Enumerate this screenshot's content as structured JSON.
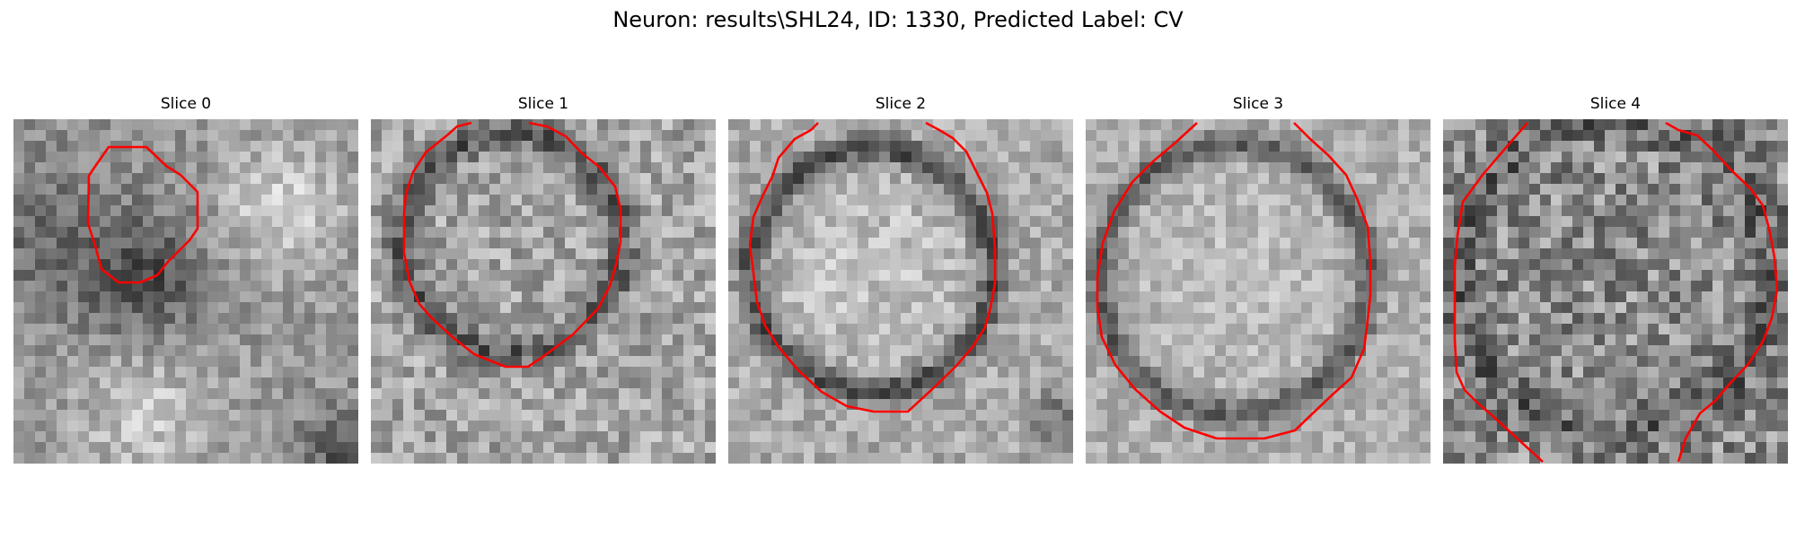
{
  "figure": {
    "title": "Neuron: results\\SHL24, ID: 1330, Predicted Label: CV"
  },
  "colors": {
    "contour": "#ff0000",
    "background": "#ffffff"
  },
  "panels": [
    {
      "title": "Slice 0"
    },
    {
      "title": "Slice 1"
    },
    {
      "title": "Slice 2"
    },
    {
      "title": "Slice 3"
    },
    {
      "title": "Slice 4"
    }
  ]
}
